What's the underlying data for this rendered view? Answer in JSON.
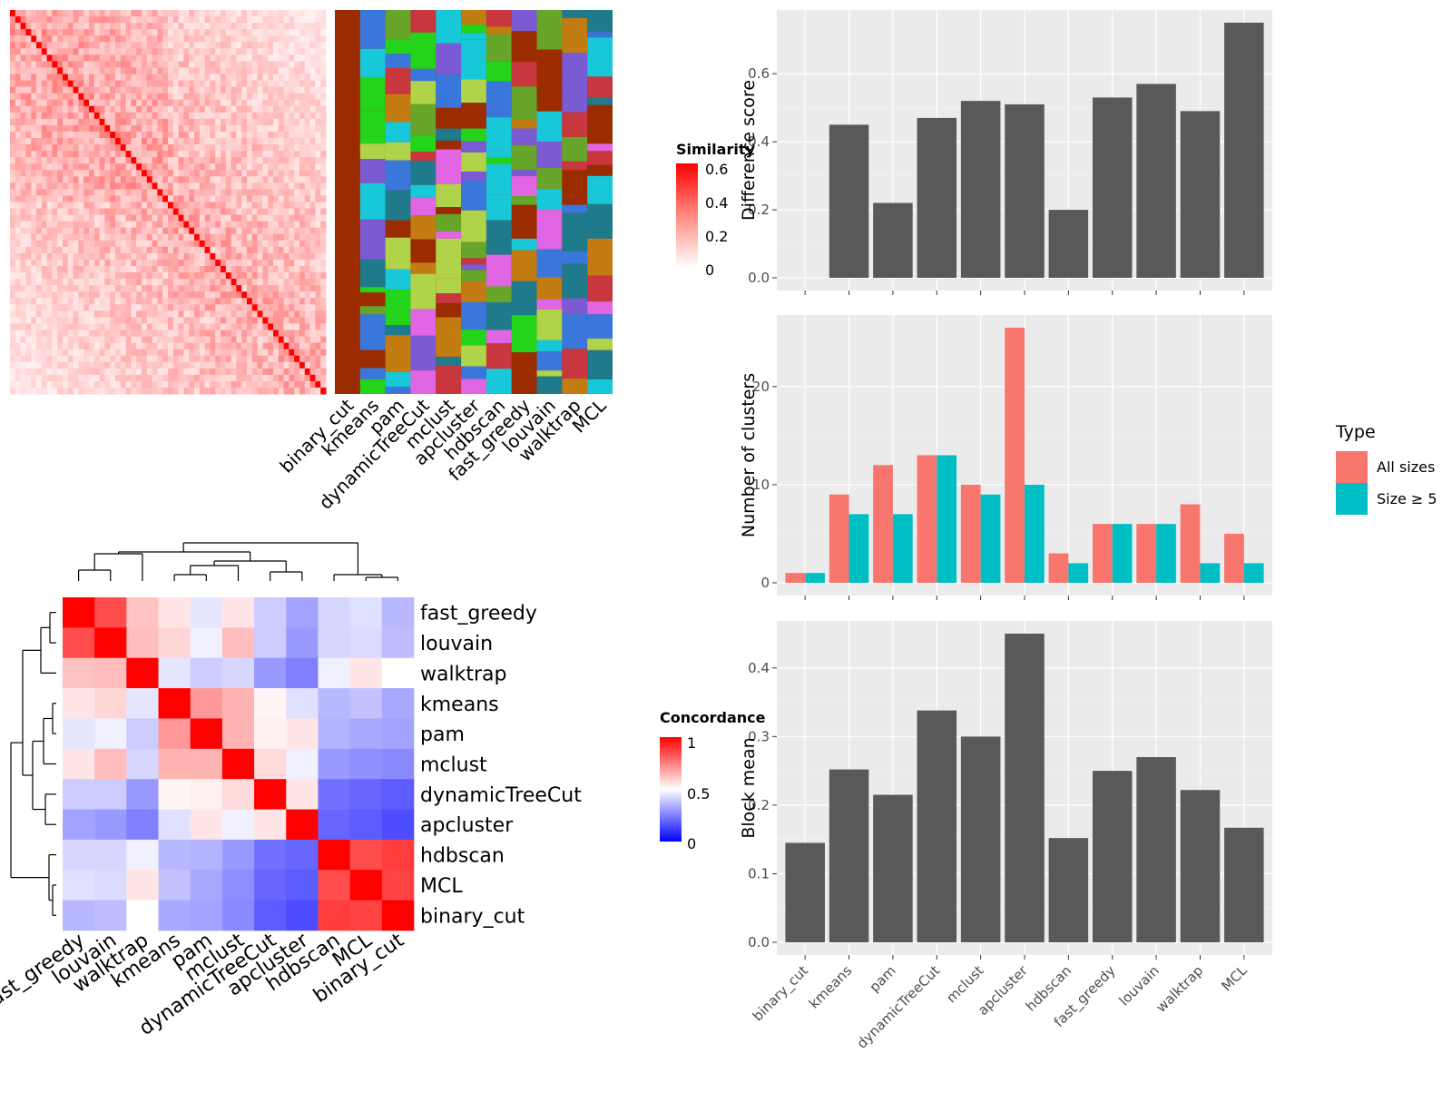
{
  "methods": [
    "binary_cut",
    "kmeans",
    "pam",
    "dynamicTreeCut",
    "mclust",
    "apcluster",
    "hdbscan",
    "fast_greedy",
    "louvain",
    "walktrap",
    "MCL"
  ],
  "similarity_heatmap": {
    "legend_title": "Similarity",
    "legend_ticks": [
      "0.6",
      "0.4",
      "0.2",
      "0"
    ],
    "label_order": [
      "binary_cut",
      "kmeans",
      "pam",
      "dynamicTreeCut",
      "mclust",
      "apcluster",
      "hdbscan",
      "fast_greedy",
      "louvain",
      "walktrap",
      "MCL"
    ]
  },
  "concordance_heatmap": {
    "legend_title": "Concordance",
    "legend_ticks": [
      "1",
      "0.5",
      "0"
    ],
    "row_labels": [
      "fast_greedy",
      "louvain",
      "walktrap",
      "kmeans",
      "pam",
      "mclust",
      "dynamicTreeCut",
      "apcluster",
      "hdbscan",
      "MCL",
      "binary_cut"
    ],
    "col_labels": [
      "fast_greedy",
      "louvain",
      "walktrap",
      "kmeans",
      "pam",
      "mclust",
      "dynamicTreeCut",
      "apcluster",
      "hdbscan",
      "MCL",
      "binary_cut"
    ],
    "matrix": [
      [
        1.0,
        0.85,
        0.62,
        0.55,
        0.45,
        0.55,
        0.4,
        0.32,
        0.42,
        0.44,
        0.36
      ],
      [
        0.85,
        1.0,
        0.63,
        0.58,
        0.47,
        0.63,
        0.4,
        0.3,
        0.42,
        0.43,
        0.37
      ],
      [
        0.62,
        0.63,
        1.0,
        0.45,
        0.4,
        0.42,
        0.3,
        0.25,
        0.47,
        0.55,
        0.5
      ],
      [
        0.55,
        0.58,
        0.45,
        1.0,
        0.7,
        0.65,
        0.52,
        0.44,
        0.36,
        0.38,
        0.33
      ],
      [
        0.45,
        0.47,
        0.4,
        0.7,
        1.0,
        0.65,
        0.53,
        0.55,
        0.35,
        0.33,
        0.32
      ],
      [
        0.55,
        0.63,
        0.42,
        0.65,
        0.65,
        1.0,
        0.57,
        0.47,
        0.3,
        0.28,
        0.27
      ],
      [
        0.4,
        0.4,
        0.3,
        0.52,
        0.53,
        0.57,
        1.0,
        0.55,
        0.22,
        0.2,
        0.18
      ],
      [
        0.32,
        0.3,
        0.25,
        0.44,
        0.55,
        0.47,
        0.55,
        1.0,
        0.2,
        0.18,
        0.15
      ],
      [
        0.42,
        0.42,
        0.47,
        0.36,
        0.35,
        0.3,
        0.22,
        0.2,
        1.0,
        0.85,
        0.88
      ],
      [
        0.44,
        0.43,
        0.55,
        0.38,
        0.33,
        0.28,
        0.2,
        0.18,
        0.85,
        1.0,
        0.87
      ],
      [
        0.36,
        0.37,
        0.5,
        0.33,
        0.32,
        0.27,
        0.18,
        0.15,
        0.88,
        0.87,
        1.0
      ]
    ]
  },
  "legend_type": {
    "title": "Type",
    "items": [
      {
        "label": "All sizes",
        "color": "#F8766D"
      },
      {
        "label": "Size ≥ 5",
        "color": "#00BFC4"
      }
    ]
  },
  "chart_data": [
    {
      "type": "bar",
      "ylabel": "Difference score",
      "categories": [
        "binary_cut",
        "kmeans",
        "pam",
        "dynamicTreeCut",
        "mclust",
        "apcluster",
        "hdbscan",
        "fast_greedy",
        "louvain",
        "walktrap",
        "MCL"
      ],
      "values": [
        0.0,
        0.45,
        0.22,
        0.47,
        0.52,
        0.51,
        0.2,
        0.53,
        0.57,
        0.49,
        0.75
      ],
      "ylim": [
        0,
        0.75
      ],
      "yticks": [
        "0.0",
        "0.2",
        "0.4",
        "0.6"
      ],
      "color": "#595959"
    },
    {
      "type": "bar",
      "ylabel": "Number of clusters",
      "categories": [
        "binary_cut",
        "kmeans",
        "pam",
        "dynamicTreeCut",
        "mclust",
        "apcluster",
        "hdbscan",
        "fast_greedy",
        "louvain",
        "walktrap",
        "MCL"
      ],
      "series": [
        {
          "name": "All sizes",
          "values": [
            1,
            9,
            12,
            13,
            10,
            26,
            3,
            6,
            6,
            8,
            5
          ],
          "color": "#F8766D"
        },
        {
          "name": "Size ≥ 5",
          "values": [
            1,
            7,
            7,
            13,
            9,
            10,
            2,
            6,
            6,
            2,
            2
          ],
          "color": "#00BFC4"
        }
      ],
      "ylim": [
        0,
        26
      ],
      "yticks": [
        "0",
        "10",
        "20"
      ]
    },
    {
      "type": "bar",
      "ylabel": "Block mean",
      "categories": [
        "binary_cut",
        "kmeans",
        "pam",
        "dynamicTreeCut",
        "mclust",
        "apcluster",
        "hdbscan",
        "fast_greedy",
        "louvain",
        "walktrap",
        "MCL"
      ],
      "values": [
        0.145,
        0.252,
        0.215,
        0.338,
        0.3,
        0.45,
        0.152,
        0.25,
        0.27,
        0.222,
        0.167
      ],
      "ylim": [
        0,
        0.45
      ],
      "yticks": [
        "0.0",
        "0.1",
        "0.2",
        "0.3",
        "0.4"
      ],
      "color": "#595959"
    }
  ]
}
